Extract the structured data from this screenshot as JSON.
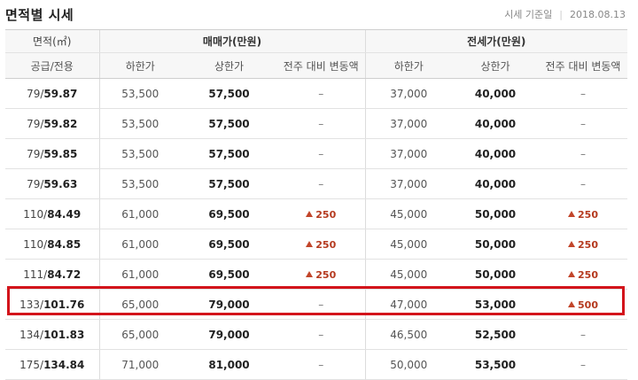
{
  "header": {
    "title": "면적별 시세",
    "base_date_label": "시세 기준일",
    "base_date": "2018.08.13"
  },
  "table": {
    "group_headers": {
      "area": "면적(㎡)",
      "sale": "매매가(만원)",
      "jeonse": "전세가(만원)"
    },
    "sub_headers": {
      "area": "공급/전용",
      "sale_low": "하한가",
      "sale_high": "상한가",
      "sale_change": "전주 대비 변동액",
      "jeonse_low": "하한가",
      "jeonse_high": "상한가",
      "jeonse_change": "전주 대비 변동액"
    },
    "rows": [
      {
        "supply": "79/",
        "exclusive": "59.87",
        "sale_low": "53,500",
        "sale_high": "57,500",
        "sale_change": "–",
        "sale_up": false,
        "jeonse_low": "37,000",
        "jeonse_high": "40,000",
        "jeonse_change": "–",
        "jeonse_up": false
      },
      {
        "supply": "79/",
        "exclusive": "59.82",
        "sale_low": "53,500",
        "sale_high": "57,500",
        "sale_change": "–",
        "sale_up": false,
        "jeonse_low": "37,000",
        "jeonse_high": "40,000",
        "jeonse_change": "–",
        "jeonse_up": false
      },
      {
        "supply": "79/",
        "exclusive": "59.85",
        "sale_low": "53,500",
        "sale_high": "57,500",
        "sale_change": "–",
        "sale_up": false,
        "jeonse_low": "37,000",
        "jeonse_high": "40,000",
        "jeonse_change": "–",
        "jeonse_up": false
      },
      {
        "supply": "79/",
        "exclusive": "59.63",
        "sale_low": "53,500",
        "sale_high": "57,500",
        "sale_change": "–",
        "sale_up": false,
        "jeonse_low": "37,000",
        "jeonse_high": "40,000",
        "jeonse_change": "–",
        "jeonse_up": false
      },
      {
        "supply": "110/",
        "exclusive": "84.49",
        "sale_low": "61,000",
        "sale_high": "69,500",
        "sale_change": "250",
        "sale_up": true,
        "jeonse_low": "45,000",
        "jeonse_high": "50,000",
        "jeonse_change": "250",
        "jeonse_up": true
      },
      {
        "supply": "110/",
        "exclusive": "84.85",
        "sale_low": "61,000",
        "sale_high": "69,500",
        "sale_change": "250",
        "sale_up": true,
        "jeonse_low": "45,000",
        "jeonse_high": "50,000",
        "jeonse_change": "250",
        "jeonse_up": true
      },
      {
        "supply": "111/",
        "exclusive": "84.72",
        "sale_low": "61,000",
        "sale_high": "69,500",
        "sale_change": "250",
        "sale_up": true,
        "jeonse_low": "45,000",
        "jeonse_high": "50,000",
        "jeonse_change": "250",
        "jeonse_up": true
      },
      {
        "supply": "133/",
        "exclusive": "101.76",
        "sale_low": "65,000",
        "sale_high": "79,000",
        "sale_change": "–",
        "sale_up": false,
        "jeonse_low": "47,000",
        "jeonse_high": "53,000",
        "jeonse_change": "500",
        "jeonse_up": true
      },
      {
        "supply": "134/",
        "exclusive": "101.83",
        "sale_low": "65,000",
        "sale_high": "79,000",
        "sale_change": "–",
        "sale_up": false,
        "jeonse_low": "46,500",
        "jeonse_high": "52,500",
        "jeonse_change": "–",
        "jeonse_up": false
      },
      {
        "supply": "175/",
        "exclusive": "134.84",
        "sale_low": "71,000",
        "sale_high": "81,000",
        "sale_change": "–",
        "sale_up": false,
        "jeonse_low": "50,000",
        "jeonse_high": "53,500",
        "jeonse_change": "–",
        "jeonse_up": false
      }
    ]
  },
  "highlight": {
    "color": "#d3141b"
  }
}
